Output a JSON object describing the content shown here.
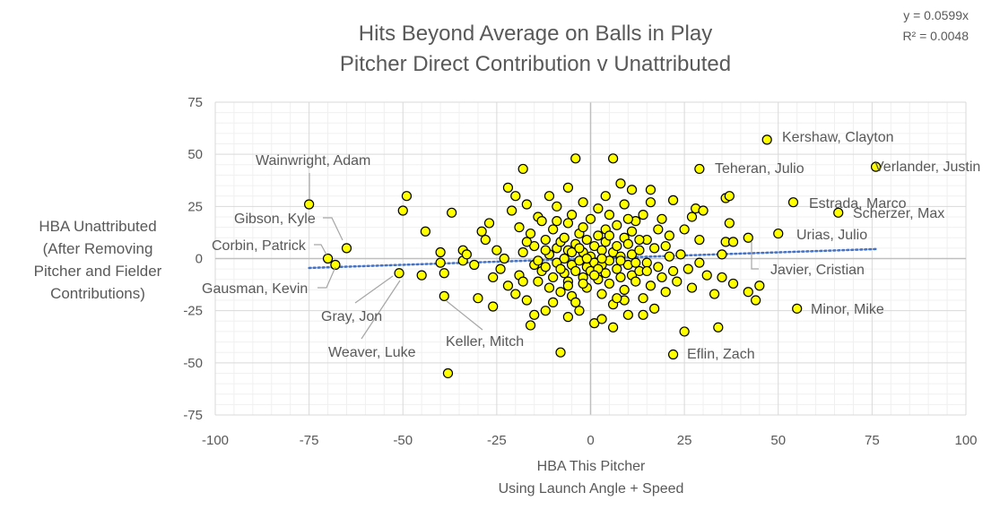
{
  "chart_data": {
    "type": "scatter",
    "title": [
      "Hits Beyond Average on Balls in Play",
      "Pitcher Direct Contribution v Unattributed"
    ],
    "xlabel": [
      "HBA This Pitcher",
      "Using Launch Angle + Speed"
    ],
    "ylabel": [
      "HBA Unattributed",
      "(After Removing",
      "Pitcher and Fielder",
      "Contributions)"
    ],
    "xlim": [
      -100,
      100
    ],
    "ylim": [
      -75,
      75
    ],
    "xticks": [
      -100,
      -75,
      -50,
      -25,
      0,
      25,
      50,
      75,
      100
    ],
    "yticks": [
      75,
      50,
      25,
      0,
      -25,
      -50,
      -75
    ],
    "minor_grid": true,
    "trendline": {
      "type": "linear",
      "slope": 0.0599,
      "equation": "y = 0.0599x",
      "r2": "R² = 0.0048"
    },
    "colors": {
      "marker_fill": "#ffff00",
      "marker_edge": "#000000",
      "trendline": "#4472c4",
      "grid_major": "#d9d9d9",
      "grid_minor": "#f0f0f0",
      "text": "#595959"
    },
    "labeled_points": [
      {
        "name": "Kershaw, Clayton",
        "x": 47,
        "y": 57
      },
      {
        "name": "Verlander, Justin",
        "x": 76,
        "y": 44
      },
      {
        "name": "Teheran, Julio",
        "x": 29,
        "y": 43
      },
      {
        "name": "Estrada, Marco",
        "x": 54,
        "y": 27
      },
      {
        "name": "Scherzer, Max",
        "x": 66,
        "y": 22
      },
      {
        "name": "Urias, Julio",
        "x": 50,
        "y": 12
      },
      {
        "name": "Javier, Cristian",
        "x": 42,
        "y": 10
      },
      {
        "name": "Minor, Mike",
        "x": 55,
        "y": -24
      },
      {
        "name": "Eflin, Zach",
        "x": 22,
        "y": -46
      },
      {
        "name": "Wainwright, Adam",
        "x": -75,
        "y": 26
      },
      {
        "name": "Gibson, Kyle",
        "x": -65,
        "y": 5
      },
      {
        "name": "Corbin, Patrick",
        "x": -70,
        "y": 0
      },
      {
        "name": "Gausman, Kevin",
        "x": -68,
        "y": -3
      },
      {
        "name": "Gray, Jon",
        "x": -51,
        "y": -7
      },
      {
        "name": "Weaver, Luke",
        "x": -45,
        "y": -8
      },
      {
        "name": "Keller, Mitch",
        "x": -39,
        "y": -18
      }
    ],
    "points": [
      [
        -49,
        30
      ],
      [
        -50,
        23
      ],
      [
        -44,
        13
      ],
      [
        -37,
        22
      ],
      [
        -40,
        3
      ],
      [
        -40,
        -2
      ],
      [
        -39,
        -7
      ],
      [
        -38,
        -55
      ],
      [
        -34,
        4
      ],
      [
        -34,
        -1
      ],
      [
        -33,
        2
      ],
      [
        -31,
        -3
      ],
      [
        -30,
        -19
      ],
      [
        -29,
        13
      ],
      [
        -28,
        9
      ],
      [
        -27,
        17
      ],
      [
        -26,
        -23
      ],
      [
        -25,
        4
      ],
      [
        -24,
        -5
      ],
      [
        -23,
        0
      ],
      [
        -22,
        -13
      ],
      [
        -22,
        34
      ],
      [
        -21,
        23
      ],
      [
        -20,
        30
      ],
      [
        -19,
        -8
      ],
      [
        -19,
        15
      ],
      [
        -18,
        43
      ],
      [
        -18,
        3
      ],
      [
        -17,
        -20
      ],
      [
        -17,
        26
      ],
      [
        -16,
        -32
      ],
      [
        -16,
        12
      ],
      [
        -15,
        6
      ],
      [
        -15,
        -3
      ],
      [
        -14,
        20
      ],
      [
        -14,
        -11
      ],
      [
        -13,
        -6
      ],
      [
        -13,
        18
      ],
      [
        -12,
        -4
      ],
      [
        -12,
        9
      ],
      [
        -11,
        -14
      ],
      [
        -11,
        2
      ],
      [
        -10,
        -9
      ],
      [
        -10,
        14
      ],
      [
        -10,
        -21
      ],
      [
        -9,
        5
      ],
      [
        -9,
        25
      ],
      [
        -9,
        -2
      ],
      [
        -8,
        -16
      ],
      [
        -8,
        8
      ],
      [
        -8,
        -45
      ],
      [
        -7,
        10
      ],
      [
        -7,
        -7
      ],
      [
        -7,
        0
      ],
      [
        -6,
        17
      ],
      [
        -6,
        -11
      ],
      [
        -6,
        4
      ],
      [
        -5,
        -3
      ],
      [
        -5,
        21
      ],
      [
        -5,
        -18
      ],
      [
        -4,
        7
      ],
      [
        -4,
        48
      ],
      [
        -4,
        -6
      ],
      [
        -3,
        12
      ],
      [
        -3,
        -1
      ],
      [
        -3,
        -25
      ],
      [
        -2,
        3
      ],
      [
        -2,
        15
      ],
      [
        -2,
        -9
      ],
      [
        -1,
        -4
      ],
      [
        -1,
        9
      ],
      [
        -1,
        -14
      ],
      [
        0,
        1
      ],
      [
        0,
        19
      ],
      [
        0,
        -6
      ],
      [
        1,
        6
      ],
      [
        1,
        -2
      ],
      [
        1,
        -31
      ],
      [
        2,
        11
      ],
      [
        2,
        -10
      ],
      [
        2,
        24
      ],
      [
        3,
        -3
      ],
      [
        3,
        4
      ],
      [
        3,
        -17
      ],
      [
        4,
        8
      ],
      [
        4,
        -7
      ],
      [
        4,
        14
      ],
      [
        5,
        -1
      ],
      [
        5,
        21
      ],
      [
        5,
        -12
      ],
      [
        6,
        3
      ],
      [
        6,
        48
      ],
      [
        6,
        -22
      ],
      [
        7,
        16
      ],
      [
        7,
        -5
      ],
      [
        7,
        6
      ],
      [
        8,
        -9
      ],
      [
        8,
        36
      ],
      [
        8,
        1
      ],
      [
        9,
        10
      ],
      [
        9,
        -15
      ],
      [
        9,
        26
      ],
      [
        10,
        -3
      ],
      [
        10,
        7
      ],
      [
        10,
        -27
      ],
      [
        11,
        13
      ],
      [
        11,
        -8
      ],
      [
        11,
        2
      ],
      [
        12,
        -11
      ],
      [
        12,
        18
      ],
      [
        13,
        4
      ],
      [
        13,
        -6
      ],
      [
        14,
        21
      ],
      [
        14,
        -19
      ],
      [
        15,
        9
      ],
      [
        15,
        -2
      ],
      [
        16,
        27
      ],
      [
        16,
        -13
      ],
      [
        17,
        5
      ],
      [
        17,
        -24
      ],
      [
        18,
        14
      ],
      [
        18,
        -4
      ],
      [
        19,
        19
      ],
      [
        19,
        -9
      ],
      [
        20,
        6
      ],
      [
        20,
        -16
      ],
      [
        21,
        1
      ],
      [
        21,
        11
      ],
      [
        22,
        -6
      ],
      [
        22,
        28
      ],
      [
        23,
        -11
      ],
      [
        24,
        2
      ],
      [
        25,
        -35
      ],
      [
        25,
        14
      ],
      [
        26,
        -5
      ],
      [
        27,
        20
      ],
      [
        27,
        -14
      ],
      [
        28,
        24
      ],
      [
        29,
        9
      ],
      [
        29,
        -2
      ],
      [
        30,
        23
      ],
      [
        31,
        -8
      ],
      [
        33,
        -17
      ],
      [
        34,
        -33
      ],
      [
        35,
        2
      ],
      [
        35,
        -9
      ],
      [
        36,
        29
      ],
      [
        36,
        8
      ],
      [
        37,
        30
      ],
      [
        37,
        17
      ],
      [
        38,
        -12
      ],
      [
        38,
        8
      ],
      [
        42,
        -16
      ],
      [
        44,
        -20
      ],
      [
        45,
        -13
      ],
      [
        -18,
        -11
      ],
      [
        -12,
        -25
      ],
      [
        -6,
        -28
      ],
      [
        3,
        -29
      ],
      [
        9,
        -20
      ],
      [
        14,
        -27
      ],
      [
        -26,
        -9
      ],
      [
        -20,
        -17
      ],
      [
        -15,
        -27
      ],
      [
        -4,
        -21
      ],
      [
        6,
        -33
      ],
      [
        -11,
        30
      ],
      [
        -6,
        34
      ],
      [
        4,
        30
      ],
      [
        11,
        33
      ],
      [
        16,
        33
      ],
      [
        -2,
        27
      ],
      [
        -8,
        -5
      ],
      [
        -5,
        3
      ],
      [
        -2,
        -12
      ],
      [
        2,
        -5
      ],
      [
        5,
        11
      ],
      [
        8,
        -1
      ],
      [
        -3,
        5
      ],
      [
        1,
        -8
      ],
      [
        -1,
        0
      ],
      [
        3,
        0
      ],
      [
        -6,
        -13
      ],
      [
        7,
        -19
      ],
      [
        -14,
        -1
      ],
      [
        12,
        -2
      ],
      [
        -9,
        18
      ],
      [
        10,
        19
      ],
      [
        -17,
        8
      ],
      [
        15,
        -6
      ],
      [
        -12,
        4
      ],
      [
        13,
        9
      ]
    ]
  }
}
